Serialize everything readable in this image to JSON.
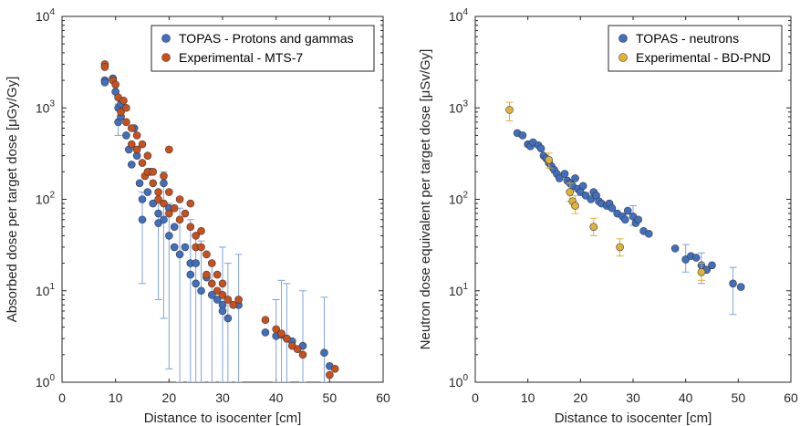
{
  "chart_data": [
    {
      "type": "scatter",
      "xlabel": "Distance to isocenter [cm]",
      "ylabel": "Absorbed dose per target dose [μGy/Gy]",
      "xlim": [
        0,
        60
      ],
      "xticks": [
        "0",
        "10",
        "20",
        "30",
        "40",
        "50",
        "60"
      ],
      "ylim": [
        1,
        10000
      ],
      "yscale": "log",
      "yticks": [
        {
          "base": "10",
          "exp": "0"
        },
        {
          "base": "10",
          "exp": "1"
        },
        {
          "base": "10",
          "exp": "2"
        },
        {
          "base": "10",
          "exp": "3"
        },
        {
          "base": "10",
          "exp": "4"
        }
      ],
      "legend_position": "top-right",
      "series": [
        {
          "name": "TOPAS - Protons and gammas",
          "color": "#3f6fbe",
          "errorbars": true,
          "points": [
            [
              8,
              2000
            ],
            [
              8,
              1900
            ],
            [
              9.5,
              2100
            ],
            [
              10,
              1500
            ],
            [
              10.5,
              1000
            ],
            [
              10.5,
              700
            ],
            [
              11,
              800
            ],
            [
              11,
              1100
            ],
            [
              12,
              500
            ],
            [
              12.5,
              350
            ],
            [
              13,
              240
            ],
            [
              13.5,
              600
            ],
            [
              14,
              300
            ],
            [
              14.5,
              150
            ],
            [
              15,
              100
            ],
            [
              15,
              60
            ],
            [
              16,
              120
            ],
            [
              16.5,
              200
            ],
            [
              17,
              90
            ],
            [
              18,
              70
            ],
            [
              18,
              55
            ],
            [
              19,
              150
            ],
            [
              19,
              60
            ],
            [
              20,
              40
            ],
            [
              20,
              80
            ],
            [
              21,
              50
            ],
            [
              21,
              30
            ],
            [
              22,
              25
            ],
            [
              23,
              30
            ],
            [
              24,
              20
            ],
            [
              24,
              15
            ],
            [
              25,
              12
            ],
            [
              25,
              20
            ],
            [
              26,
              10
            ],
            [
              27,
              14
            ],
            [
              28,
              9
            ],
            [
              29,
              8
            ],
            [
              30,
              7
            ],
            [
              30,
              6
            ],
            [
              31,
              5
            ],
            [
              33,
              7
            ],
            [
              38,
              3.5
            ],
            [
              40,
              3.2
            ],
            [
              41,
              3.3
            ],
            [
              42,
              3
            ],
            [
              43,
              2.8
            ],
            [
              45,
              2.5
            ],
            [
              49,
              2.1
            ],
            [
              50,
              1.5
            ]
          ],
          "errors": [
            [
              10.5,
              700,
              500,
              1100
            ],
            [
              15,
              60,
              12,
              120
            ],
            [
              18,
              55,
              8,
              90
            ],
            [
              19,
              60,
              5,
              200
            ],
            [
              20,
              40,
              1.4,
              90
            ],
            [
              22,
              25,
              1,
              80
            ],
            [
              24,
              15,
              1,
              60
            ],
            [
              25,
              12,
              1,
              40
            ],
            [
              26,
              10,
              1,
              35
            ],
            [
              28,
              9,
              1,
              20
            ],
            [
              30,
              6,
              1,
              30
            ],
            [
              31,
              5,
              1,
              20
            ],
            [
              33,
              7,
              1,
              25
            ],
            [
              40,
              3.2,
              1,
              8
            ],
            [
              41,
              3.3,
              1,
              13
            ],
            [
              42,
              3,
              1,
              12
            ],
            [
              45,
              2.5,
              1,
              10
            ],
            [
              49,
              2.1,
              1,
              8.5
            ]
          ]
        },
        {
          "name": "Experimental - MTS-7",
          "color": "#c9501c",
          "errorbars": false,
          "points": [
            [
              8,
              3000
            ],
            [
              8,
              2800
            ],
            [
              9.5,
              2000
            ],
            [
              10,
              1800
            ],
            [
              10.5,
              1300
            ],
            [
              11,
              900
            ],
            [
              11.5,
              1200
            ],
            [
              12,
              1000
            ],
            [
              12,
              700
            ],
            [
              13,
              600
            ],
            [
              13,
              400
            ],
            [
              14,
              500
            ],
            [
              14,
              350
            ],
            [
              15,
              400
            ],
            [
              15,
              250
            ],
            [
              15.5,
              180
            ],
            [
              16,
              300
            ],
            [
              16,
              200
            ],
            [
              17,
              200
            ],
            [
              17,
              150
            ],
            [
              18,
              120
            ],
            [
              18,
              100
            ],
            [
              19,
              180
            ],
            [
              19,
              90
            ],
            [
              20,
              350
            ],
            [
              20,
              120
            ],
            [
              20,
              70
            ],
            [
              21,
              80
            ],
            [
              22,
              100
            ],
            [
              22,
              60
            ],
            [
              23,
              70
            ],
            [
              24,
              90
            ],
            [
              24,
              50
            ],
            [
              25,
              40
            ],
            [
              25,
              30
            ],
            [
              26,
              45
            ],
            [
              26,
              30
            ],
            [
              27,
              25
            ],
            [
              27,
              15
            ],
            [
              28,
              20
            ],
            [
              28,
              12
            ],
            [
              29,
              15
            ],
            [
              29,
              10
            ],
            [
              30,
              12
            ],
            [
              30,
              9
            ],
            [
              31,
              8
            ],
            [
              32,
              7
            ],
            [
              33,
              8
            ],
            [
              38,
              4.8
            ],
            [
              40,
              3.8
            ],
            [
              41,
              3.4
            ],
            [
              42,
              3
            ],
            [
              43,
              2.5
            ],
            [
              44,
              2.3
            ],
            [
              45,
              2
            ],
            [
              50,
              1.2
            ],
            [
              51,
              1.4
            ]
          ]
        }
      ]
    },
    {
      "type": "scatter",
      "xlabel": "Distance to isocenter [cm]",
      "ylabel": "Neutron dose equivalent per target dose [μSv/Gy]",
      "xlim": [
        0,
        60
      ],
      "xticks": [
        "0",
        "10",
        "20",
        "30",
        "40",
        "50",
        "60"
      ],
      "ylim": [
        1,
        10000
      ],
      "yscale": "log",
      "yticks": [
        {
          "base": "10",
          "exp": "0"
        },
        {
          "base": "10",
          "exp": "1"
        },
        {
          "base": "10",
          "exp": "2"
        },
        {
          "base": "10",
          "exp": "3"
        },
        {
          "base": "10",
          "exp": "4"
        }
      ],
      "legend_position": "top-right",
      "series": [
        {
          "name": "TOPAS - neutrons",
          "color": "#3f6fbe",
          "errorbars": true,
          "points": [
            [
              8,
              530
            ],
            [
              9,
              500
            ],
            [
              10,
              400
            ],
            [
              10.5,
              380
            ],
            [
              11,
              420
            ],
            [
              12,
              390
            ],
            [
              12.5,
              360
            ],
            [
              13,
              300
            ],
            [
              13.5,
              280
            ],
            [
              14,
              250
            ],
            [
              14.5,
              230
            ],
            [
              15,
              210
            ],
            [
              15.5,
              190
            ],
            [
              16,
              170
            ],
            [
              17,
              190
            ],
            [
              17.5,
              160
            ],
            [
              18,
              150
            ],
            [
              18.5,
              140
            ],
            [
              19,
              170
            ],
            [
              19.5,
              130
            ],
            [
              20,
              120
            ],
            [
              20.5,
              140
            ],
            [
              21,
              110
            ],
            [
              22,
              100
            ],
            [
              22.5,
              120
            ],
            [
              23,
              110
            ],
            [
              23.5,
              95
            ],
            [
              24,
              90
            ],
            [
              25,
              85
            ],
            [
              25.5,
              90
            ],
            [
              26,
              80
            ],
            [
              27,
              70
            ],
            [
              28,
              65
            ],
            [
              28.5,
              60
            ],
            [
              29,
              75
            ],
            [
              30,
              65
            ],
            [
              30.5,
              55
            ],
            [
              31,
              60
            ],
            [
              32,
              45
            ],
            [
              33,
              42
            ],
            [
              38,
              29
            ],
            [
              40,
              22
            ],
            [
              41,
              24
            ],
            [
              42,
              23
            ],
            [
              43,
              19
            ],
            [
              44,
              17
            ],
            [
              45,
              19
            ],
            [
              49,
              12
            ],
            [
              50.5,
              11
            ]
          ],
          "errors": [
            [
              40,
              22,
              16,
              32
            ],
            [
              43,
              19,
              12,
              26
            ],
            [
              49,
              12,
              5.5,
              18
            ],
            [
              30,
              65,
              52,
              85
            ]
          ]
        },
        {
          "name": "Experimental - BD-PND",
          "color": "#e0b23a",
          "errorbars": true,
          "points": [
            [
              6.5,
              950
            ],
            [
              14,
              270
            ],
            [
              18,
              120
            ],
            [
              18.5,
              95
            ],
            [
              19,
              85
            ],
            [
              22.5,
              50
            ],
            [
              27.5,
              30
            ],
            [
              43,
              16
            ]
          ],
          "errors": [
            [
              6.5,
              950,
              720,
              1150
            ],
            [
              14,
              270,
              220,
              320
            ],
            [
              18,
              120,
              95,
              150
            ],
            [
              19,
              85,
              70,
              110
            ],
            [
              22.5,
              50,
              40,
              62
            ],
            [
              27.5,
              30,
              24,
              37
            ],
            [
              43,
              16,
              13,
              20
            ]
          ]
        }
      ]
    }
  ]
}
